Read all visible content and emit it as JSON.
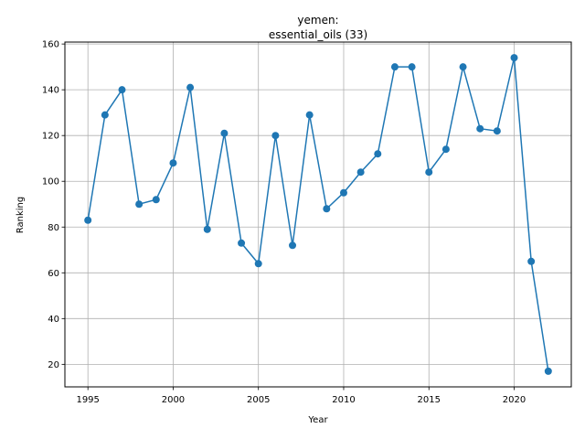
{
  "chart_data": {
    "type": "line",
    "title_line1": "yemen:",
    "title_line2": "essential_oils (33)",
    "xlabel": "Year",
    "ylabel": "Ranking",
    "xlim": [
      1993.65,
      1994.65
    ],
    "x_range": [
      1993.65,
      2023.35
    ],
    "ylim": [
      10.15,
      160.85
    ],
    "x_ticks": [
      1995,
      2000,
      2005,
      2010,
      2015,
      2020
    ],
    "y_ticks": [
      20,
      40,
      60,
      80,
      100,
      120,
      140,
      160
    ],
    "grid": true,
    "series_color": "#1f77b4",
    "x": [
      1995,
      1996,
      1997,
      1998,
      1999,
      2000,
      2001,
      2002,
      2003,
      2004,
      2005,
      2006,
      2007,
      2008,
      2009,
      2010,
      2011,
      2012,
      2013,
      2014,
      2015,
      2016,
      2017,
      2018,
      2019,
      2020,
      2021,
      2022
    ],
    "values": [
      83,
      129,
      140,
      90,
      92,
      108,
      141,
      79,
      121,
      73,
      64,
      120,
      72,
      129,
      88,
      95,
      104,
      112,
      150,
      150,
      104,
      114,
      150,
      123,
      122,
      154,
      65,
      17
    ]
  }
}
